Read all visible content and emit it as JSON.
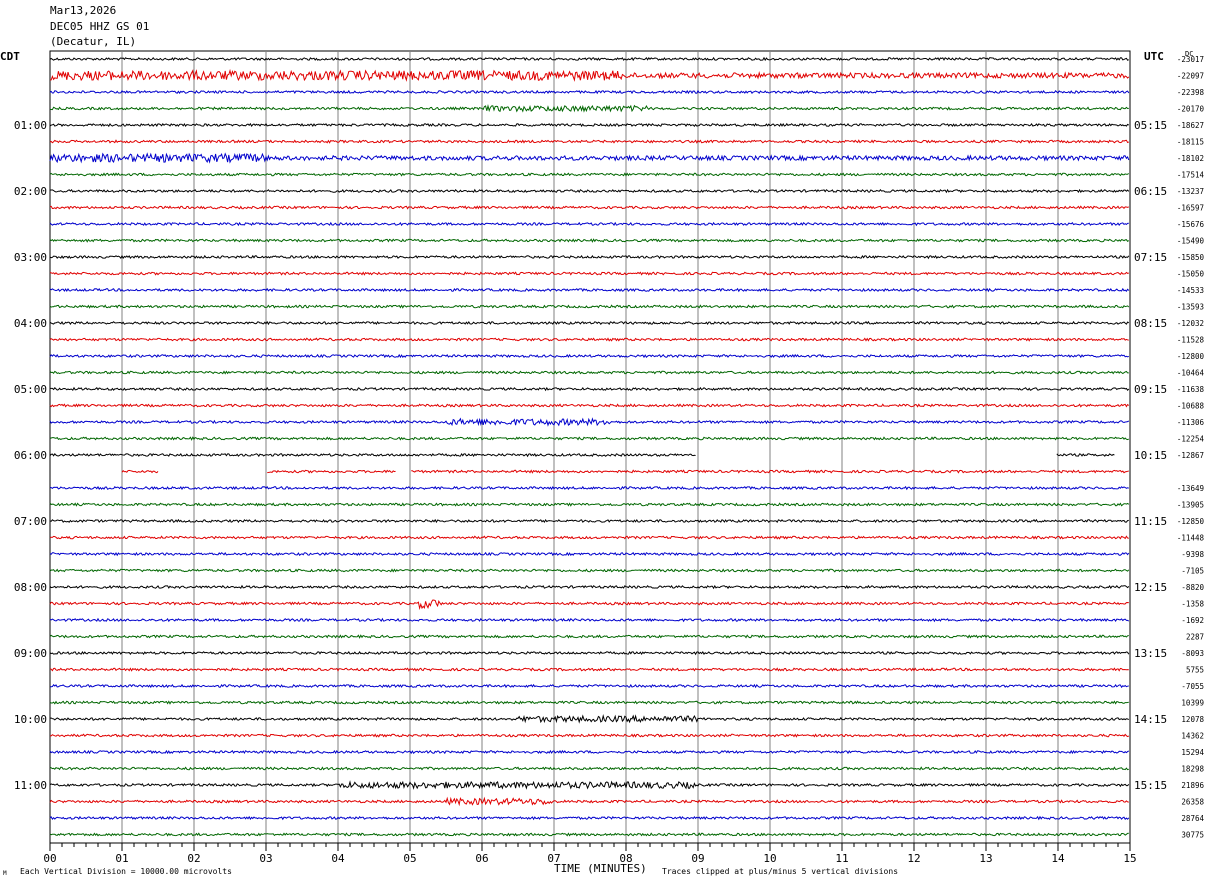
{
  "header": {
    "date": "Mar13,2026",
    "station": "DEC05 HHZ GS 01",
    "location": "(Decatur, IL)",
    "left_zone": "CDT",
    "right_zone": "UTC",
    "top_right_value": "DC"
  },
  "footer": {
    "scale_note": "Each Vertical Division = 10000.00 microvolts",
    "clip_note": "Traces clipped at plus/minus 5 vertical divisions",
    "corner_mark": "M"
  },
  "colors": {
    "trace_cycle": [
      "#000000",
      "#e00000",
      "#0000cc",
      "#006600"
    ],
    "grid": "#808080"
  },
  "chart_data": {
    "type": "line",
    "title": "",
    "xlabel": "TIME (MINUTES)",
    "ylabel": "",
    "xlim": [
      0,
      15
    ],
    "x_ticks": [
      "00",
      "01",
      "02",
      "03",
      "04",
      "05",
      "06",
      "07",
      "08",
      "09",
      "10",
      "11",
      "12",
      "13",
      "14",
      "15"
    ],
    "minor_ticks_per_minute": 6,
    "traces_per_hour": 4,
    "trace_minutes": 15,
    "left_time_labels": [
      "01:00",
      "02:00",
      "03:00",
      "04:00",
      "05:00",
      "06:00",
      "07:00",
      "08:00",
      "09:00",
      "10:00",
      "11:00"
    ],
    "right_time_labels": [
      "05:15",
      "06:15",
      "07:15",
      "08:15",
      "09:15",
      "10:15",
      "11:15",
      "12:15",
      "13:15",
      "14:15",
      "15:15"
    ],
    "trace_offsets": [
      "-23017",
      "-22097",
      "-22398",
      "-20170",
      "-18627",
      "-18115",
      "-18102",
      "-17514",
      "-13237",
      "-16597",
      "-15676",
      "-15490",
      "-15850",
      "-15050",
      "-14533",
      "-13593",
      "-12032",
      "-11528",
      "-12800",
      "-10464",
      "-11638",
      "-10688",
      "-11306",
      "-12254",
      "-12867",
      "",
      "-13649",
      "-13905",
      "-12850",
      "-11448",
      "-9398",
      "-7105",
      "-8820",
      "-1358",
      "-1692",
      "2287",
      "-8093",
      "5755",
      "-7055",
      "10399",
      "12078",
      "14362",
      "15294",
      "18298",
      "21896",
      "26358",
      "28764",
      "30775"
    ],
    "gaps": [
      {
        "trace": 24,
        "from_minute": 8.97,
        "to_minute": 13.98
      },
      {
        "trace": 24,
        "from_minute": 14.8,
        "to_minute": 15.0
      },
      {
        "trace": 25,
        "from_minute": 0.0,
        "to_minute": 1.0
      },
      {
        "trace": 25,
        "from_minute": 1.5,
        "to_minute": 3.0
      },
      {
        "trace": 25,
        "from_minute": 4.8,
        "to_minute": 5.0
      }
    ],
    "grid": true
  }
}
